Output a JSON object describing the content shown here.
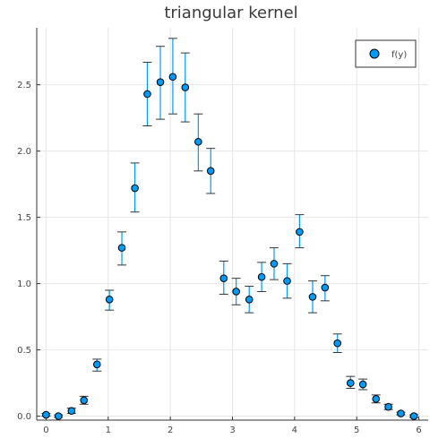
{
  "chart_data": {
    "type": "scatter",
    "title": "triangular kernel",
    "xlabel": "",
    "ylabel": "",
    "xlim": [
      -0.15,
      6.15
    ],
    "ylim": [
      -0.03,
      2.93
    ],
    "xticks": [
      0,
      1,
      2,
      3,
      4,
      5,
      6
    ],
    "yticks": [
      0.0,
      0.5,
      1.0,
      1.5,
      2.0,
      2.5
    ],
    "xtick_labels": [
      "0",
      "1",
      "2",
      "3",
      "4",
      "5",
      "6"
    ],
    "ytick_labels": [
      "0.0",
      "0.5",
      "1.0",
      "1.5",
      "2.0",
      "2.5"
    ],
    "grid": true,
    "legend_position": "top-right",
    "marker_color": "#009af9",
    "errorbar_color": "#009af9",
    "series": [
      {
        "name": "f(y)",
        "points": [
          {
            "x": 0.0,
            "y": 0.01,
            "lo": 0.0,
            "hi": 0.02
          },
          {
            "x": 0.2,
            "y": 0.0,
            "lo": -0.01,
            "hi": 0.01
          },
          {
            "x": 0.41,
            "y": 0.04,
            "lo": 0.02,
            "hi": 0.06
          },
          {
            "x": 0.61,
            "y": 0.12,
            "lo": 0.09,
            "hi": 0.15
          },
          {
            "x": 0.82,
            "y": 0.39,
            "lo": 0.34,
            "hi": 0.43
          },
          {
            "x": 1.02,
            "y": 0.88,
            "lo": 0.8,
            "hi": 0.95
          },
          {
            "x": 1.22,
            "y": 1.27,
            "lo": 1.14,
            "hi": 1.39
          },
          {
            "x": 1.43,
            "y": 1.72,
            "lo": 1.54,
            "hi": 1.91
          },
          {
            "x": 1.63,
            "y": 2.43,
            "lo": 2.19,
            "hi": 2.67
          },
          {
            "x": 1.84,
            "y": 2.52,
            "lo": 2.24,
            "hi": 2.79
          },
          {
            "x": 2.04,
            "y": 2.56,
            "lo": 2.28,
            "hi": 2.85
          },
          {
            "x": 2.24,
            "y": 2.48,
            "lo": 2.22,
            "hi": 2.74
          },
          {
            "x": 2.45,
            "y": 2.07,
            "lo": 1.85,
            "hi": 2.28
          },
          {
            "x": 2.65,
            "y": 1.85,
            "lo": 1.68,
            "hi": 2.02
          },
          {
            "x": 2.86,
            "y": 1.04,
            "lo": 0.92,
            "hi": 1.17
          },
          {
            "x": 3.06,
            "y": 0.94,
            "lo": 0.84,
            "hi": 1.04
          },
          {
            "x": 3.27,
            "y": 0.88,
            "lo": 0.78,
            "hi": 0.98
          },
          {
            "x": 3.47,
            "y": 1.05,
            "lo": 0.94,
            "hi": 1.16
          },
          {
            "x": 3.67,
            "y": 1.15,
            "lo": 1.03,
            "hi": 1.27
          },
          {
            "x": 3.88,
            "y": 1.02,
            "lo": 0.89,
            "hi": 1.15
          },
          {
            "x": 4.08,
            "y": 1.39,
            "lo": 1.27,
            "hi": 1.52
          },
          {
            "x": 4.29,
            "y": 0.9,
            "lo": 0.78,
            "hi": 1.02
          },
          {
            "x": 4.49,
            "y": 0.97,
            "lo": 0.87,
            "hi": 1.06
          },
          {
            "x": 4.69,
            "y": 0.55,
            "lo": 0.48,
            "hi": 0.62
          },
          {
            "x": 4.9,
            "y": 0.25,
            "lo": 0.21,
            "hi": 0.3
          },
          {
            "x": 5.1,
            "y": 0.24,
            "lo": 0.2,
            "hi": 0.28
          },
          {
            "x": 5.31,
            "y": 0.13,
            "lo": 0.1,
            "hi": 0.16
          },
          {
            "x": 5.51,
            "y": 0.07,
            "lo": 0.05,
            "hi": 0.09
          },
          {
            "x": 5.71,
            "y": 0.02,
            "lo": 0.01,
            "hi": 0.03
          },
          {
            "x": 5.92,
            "y": 0.0,
            "lo": -0.01,
            "hi": 0.01
          }
        ]
      }
    ]
  }
}
